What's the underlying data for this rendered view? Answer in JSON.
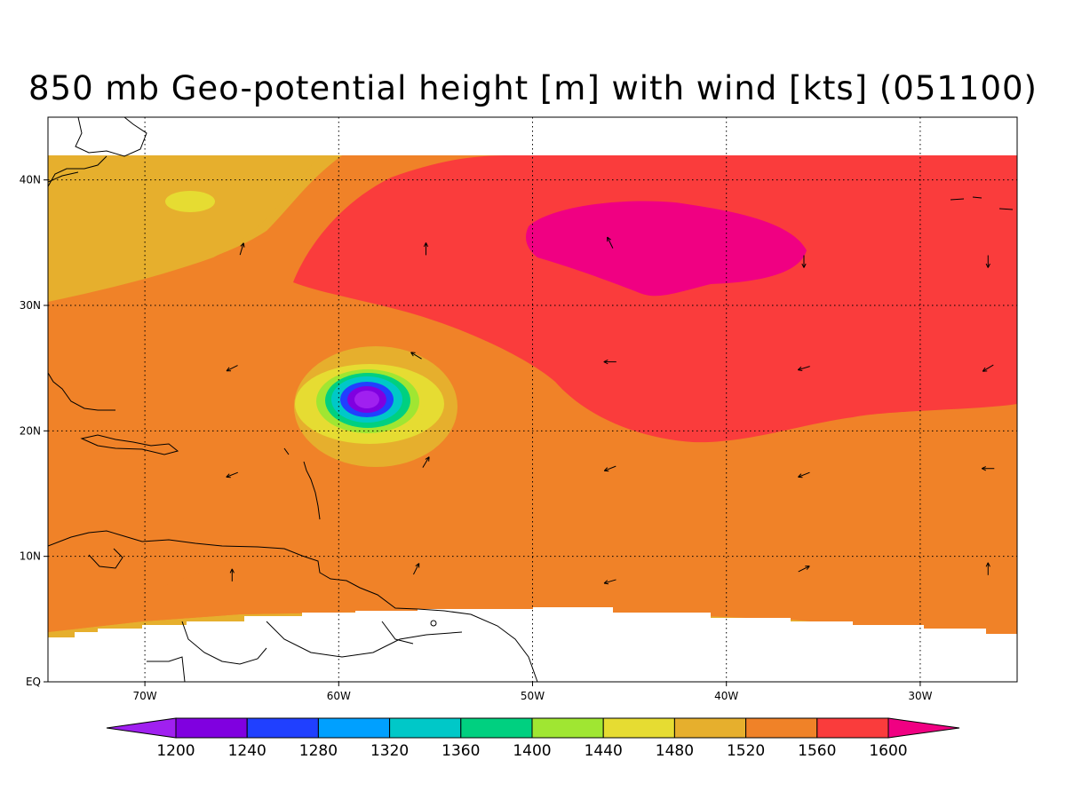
{
  "title": "850 mb Geo-potential height [m] with wind [kts] (051100)",
  "map": {
    "lon_range": [
      -75,
      -25
    ],
    "lat_range": [
      0,
      45
    ],
    "lon_ticks": [
      {
        "value": -70,
        "label": "70W"
      },
      {
        "value": -60,
        "label": "60W"
      },
      {
        "value": -50,
        "label": "50W"
      },
      {
        "value": -40,
        "label": "40W"
      },
      {
        "value": -30,
        "label": "30W"
      }
    ],
    "lat_ticks": [
      {
        "value": 0,
        "label": "EQ"
      },
      {
        "value": 10,
        "label": "10N"
      },
      {
        "value": 20,
        "label": "20N"
      },
      {
        "value": 30,
        "label": "30N"
      },
      {
        "value": 40,
        "label": "40N"
      }
    ],
    "grid": true,
    "storm_center": {
      "lon": -58.8,
      "lat": 22.6
    }
  },
  "colorbar": {
    "levels": [
      1200,
      1240,
      1280,
      1320,
      1360,
      1400,
      1440,
      1480,
      1520,
      1560,
      1600
    ],
    "labels": [
      "1200",
      "1240",
      "1280",
      "1320",
      "1360",
      "1400",
      "1440",
      "1480",
      "1520",
      "1560",
      "1600"
    ],
    "colors": [
      "#a020f0",
      "#8000e0",
      "#2040ff",
      "#00a0ff",
      "#00c8c8",
      "#00d080",
      "#a0e632",
      "#e6dc32",
      "#e6af2d",
      "#f08228",
      "#fa3c3c",
      "#f00082"
    ]
  },
  "wind_vectors": [
    {
      "lon": -65,
      "lat": 34.5,
      "u": 0.3,
      "v": 1
    },
    {
      "lon": -55.5,
      "lat": 34.5,
      "u": 0,
      "v": 1
    },
    {
      "lon": -46,
      "lat": 35,
      "u": -0.5,
      "v": 1
    },
    {
      "lon": -36,
      "lat": 33.5,
      "u": 0,
      "v": -1
    },
    {
      "lon": -26.5,
      "lat": 33.5,
      "u": 0,
      "v": -1
    },
    {
      "lon": -65.5,
      "lat": 25,
      "u": -1,
      "v": -0.5
    },
    {
      "lon": -56,
      "lat": 26,
      "u": -1,
      "v": 0.6
    },
    {
      "lon": -46,
      "lat": 25.5,
      "u": -1,
      "v": 0
    },
    {
      "lon": -36,
      "lat": 25,
      "u": -1,
      "v": -0.3
    },
    {
      "lon": -26.5,
      "lat": 25,
      "u": -1,
      "v": -0.6
    },
    {
      "lon": -65.5,
      "lat": 16.5,
      "u": -1,
      "v": -0.4
    },
    {
      "lon": -55.5,
      "lat": 17.5,
      "u": 0.6,
      "v": 1
    },
    {
      "lon": -46,
      "lat": 17,
      "u": -1,
      "v": -0.4
    },
    {
      "lon": -36,
      "lat": 16.5,
      "u": -1,
      "v": -0.4
    },
    {
      "lon": -26.5,
      "lat": 17,
      "u": -1,
      "v": 0
    },
    {
      "lon": -65.5,
      "lat": 8.5,
      "u": 0,
      "v": 1
    },
    {
      "lon": -56,
      "lat": 9,
      "u": 0.5,
      "v": 1
    },
    {
      "lon": -46,
      "lat": 8,
      "u": -1,
      "v": -0.3
    },
    {
      "lon": -36,
      "lat": 9,
      "u": 1,
      "v": 0.5
    },
    {
      "lon": -26.5,
      "lat": 9,
      "u": 0,
      "v": 1
    }
  ]
}
